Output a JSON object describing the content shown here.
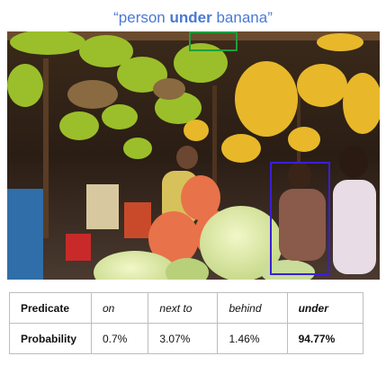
{
  "title": {
    "open_quote": "“",
    "subject": "person",
    "predicate": "under",
    "object": "banana",
    "close_quote": "”"
  },
  "box_colors": {
    "object_box": "#1f9e3a",
    "subject_box": "#3a1fd6"
  },
  "table": {
    "predicate_header": "Predicate",
    "probability_header": "Probability",
    "predicates": [
      "on",
      "next to",
      "behind",
      "under"
    ],
    "probabilities": [
      "0.7%",
      "3.07%",
      "1.46%",
      "94.77%"
    ],
    "highlight_index": 3
  }
}
